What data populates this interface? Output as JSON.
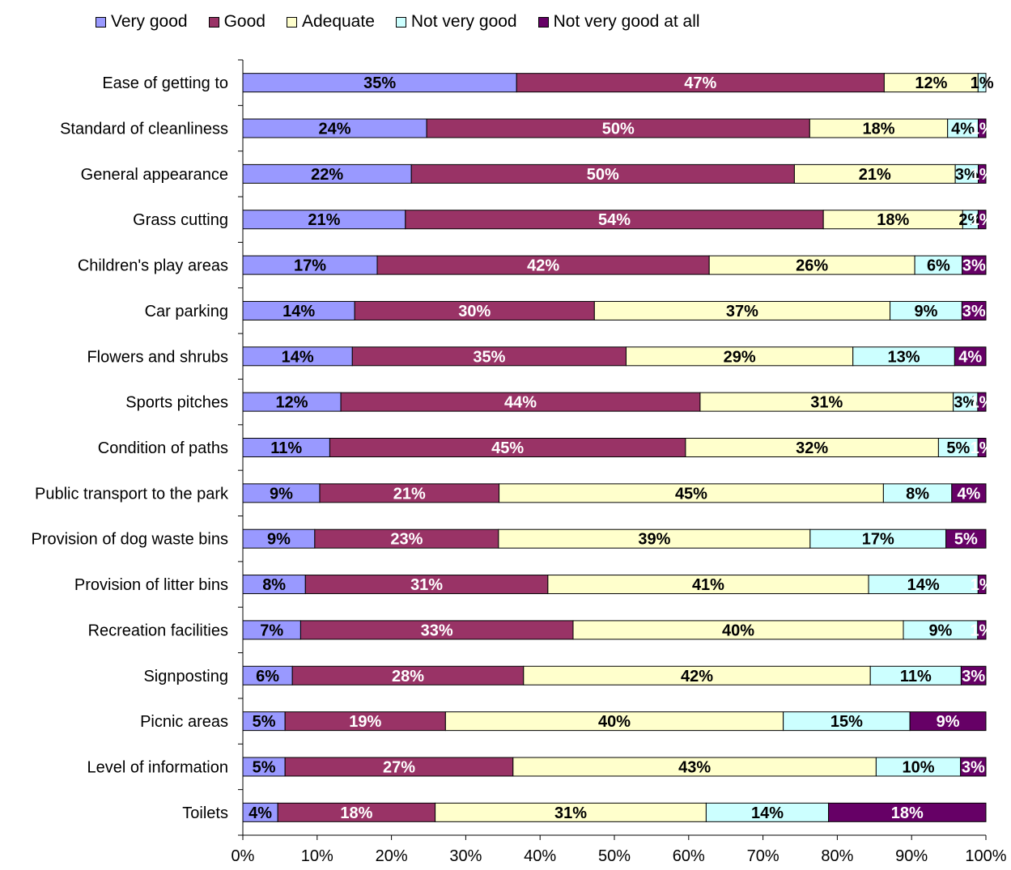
{
  "chart_data": {
    "type": "bar",
    "orientation": "horizontal",
    "stacked": "percent",
    "categories": [
      "Ease of getting to",
      "Standard of cleanliness",
      "General appearance",
      "Grass cutting",
      "Children's play areas",
      "Car parking",
      "Flowers and shrubs",
      "Sports pitches",
      "Condition of paths",
      "Public transport to the park",
      "Provision of dog waste bins",
      "Provision of litter bins",
      "Recreation facilities",
      "Signposting",
      "Picnic areas",
      "Level of information",
      "Toilets"
    ],
    "series": [
      {
        "name": "Very good",
        "color": "#9999FF",
        "label_color": "#000000",
        "values": [
          35,
          24,
          22,
          21,
          17,
          14,
          14,
          12,
          11,
          9,
          9,
          8,
          7,
          6,
          5,
          5,
          4
        ],
        "labels": [
          "35%",
          "24%",
          "22%",
          "21%",
          "17%",
          "14%",
          "14%",
          "12%",
          "11%",
          "9%",
          "9%",
          "8%",
          "7%",
          "6%",
          "5%",
          "5%",
          "4%"
        ]
      },
      {
        "name": "Good",
        "color": "#993366",
        "label_color": "#FFFFFF",
        "values": [
          47,
          50,
          50,
          54,
          42,
          30,
          35,
          44,
          45,
          21,
          23,
          31,
          33,
          28,
          19,
          27,
          18
        ],
        "labels": [
          "47%",
          "50%",
          "50%",
          "54%",
          "42%",
          "30%",
          "35%",
          "44%",
          "45%",
          "21%",
          "23%",
          "31%",
          "33%",
          "28%",
          "19%",
          "27%",
          "18%"
        ]
      },
      {
        "name": "Adequate",
        "color": "#FFFFCC",
        "label_color": "#000000",
        "values": [
          12,
          18,
          21,
          18,
          26,
          37,
          29,
          31,
          32,
          45,
          39,
          41,
          40,
          42,
          40,
          43,
          31
        ],
        "labels": [
          "12%",
          "18%",
          "21%",
          "18%",
          "26%",
          "37%",
          "29%",
          "31%",
          "32%",
          "45%",
          "39%",
          "41%",
          "40%",
          "42%",
          "40%",
          "43%",
          "31%"
        ]
      },
      {
        "name": "Not very good",
        "color": "#CCFFFF",
        "label_color": "#000000",
        "values": [
          1,
          4,
          3,
          2,
          6,
          9,
          13,
          3,
          5,
          8,
          17,
          14,
          9,
          11,
          15,
          10,
          14
        ],
        "labels": [
          "1%",
          "4%",
          "3%",
          "2%",
          "6%",
          "9%",
          "13%",
          "3%",
          "5%",
          "8%",
          "17%",
          "14%",
          "9%",
          "11%",
          "15%",
          "10%",
          "14%"
        ]
      },
      {
        "name": "Not very good at all",
        "color": "#660066",
        "label_color": "#FFFFFF",
        "values": [
          0,
          1,
          1,
          1,
          3,
          3,
          4,
          1,
          1,
          4,
          5,
          1,
          1,
          3,
          9,
          3,
          18
        ],
        "labels": [
          "",
          "1%",
          "1%",
          "1%",
          "3%",
          "3%",
          "4%",
          "1%",
          "1%",
          "4%",
          "5%",
          "1%",
          "1%",
          "3%",
          "9%",
          "3%",
          "18%"
        ]
      }
    ],
    "xlim": [
      0,
      100
    ],
    "xticks": [
      "0%",
      "10%",
      "20%",
      "30%",
      "40%",
      "50%",
      "60%",
      "70%",
      "80%",
      "90%",
      "100%"
    ],
    "legend": "top",
    "grid": false
  }
}
